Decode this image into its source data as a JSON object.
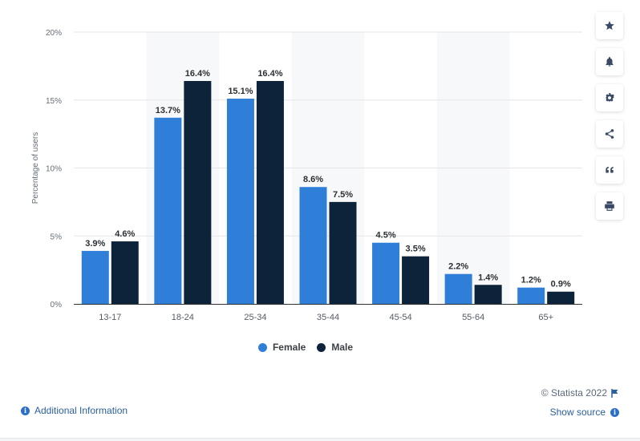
{
  "chart_data": {
    "type": "bar",
    "categories": [
      "13-17",
      "18-24",
      "25-34",
      "35-44",
      "45-54",
      "55-64",
      "65+"
    ],
    "series": [
      {
        "name": "Female",
        "values": [
          3.9,
          13.7,
          15.1,
          8.6,
          4.5,
          2.2,
          1.2
        ],
        "value_labels": [
          "3.9%",
          "13.7%",
          "15.1%",
          "8.6%",
          "4.5%",
          "2.2%",
          "1.2%"
        ]
      },
      {
        "name": "Male",
        "values": [
          4.6,
          16.4,
          16.4,
          7.5,
          3.5,
          1.4,
          0.9
        ],
        "value_labels": [
          "4.6%",
          "16.4%",
          "16.4%",
          "7.5%",
          "3.5%",
          "1.4%",
          "0.9%"
        ]
      }
    ],
    "ylabel": "Percentage of users",
    "ylim": [
      0,
      20
    ],
    "yticks": [
      0,
      5,
      10,
      15,
      20
    ],
    "ytick_labels": [
      "0%",
      "5%",
      "10%",
      "15%",
      "20%"
    ],
    "grid": true,
    "legend_position": "bottom-center",
    "colors": {
      "Female": "#2f7ed8",
      "Male": "#0d233a"
    }
  },
  "legend": {
    "items": [
      {
        "label": "Female",
        "color": "#2f7ed8"
      },
      {
        "label": "Male",
        "color": "#0d233a"
      }
    ]
  },
  "toolbar": {
    "icons": [
      "star-icon",
      "bell-icon",
      "gear-icon",
      "share-icon",
      "quote-icon",
      "print-icon"
    ]
  },
  "footer": {
    "credits": "© Statista 2022",
    "additional_info": "Additional Information",
    "show_source": "Show source"
  }
}
